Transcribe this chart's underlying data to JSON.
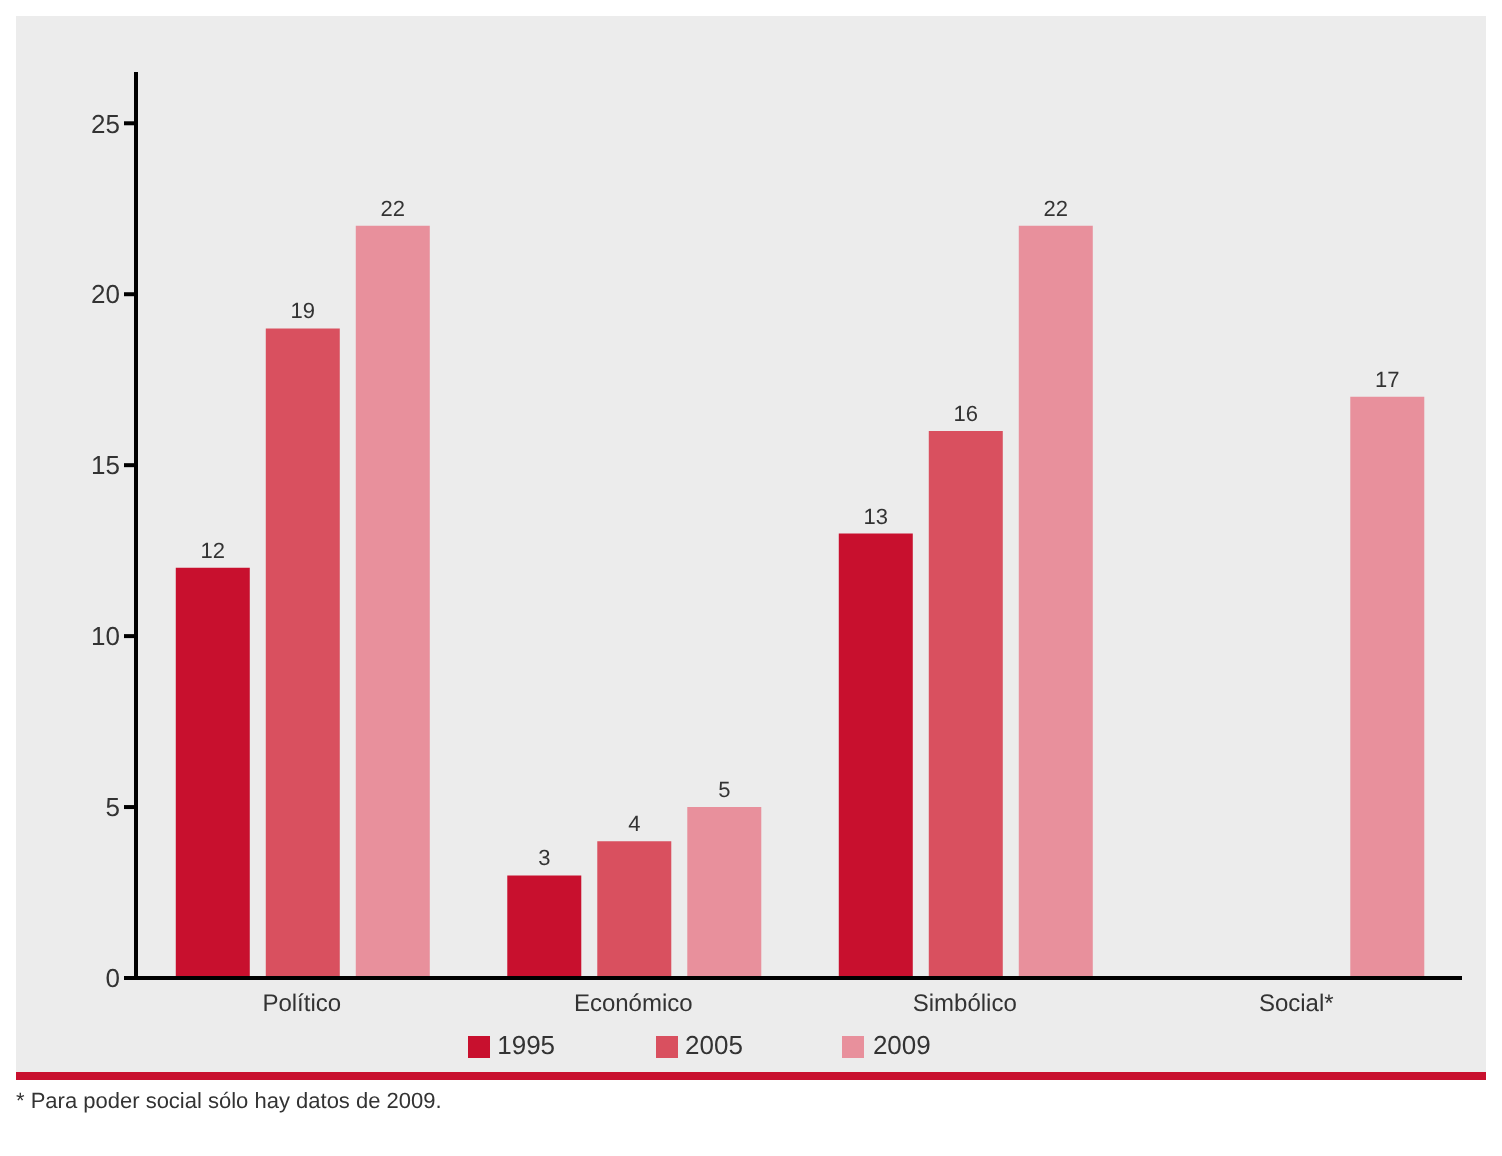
{
  "chart_data": {
    "type": "bar",
    "categories": [
      "Político",
      "Económico",
      "Simbólico",
      "Social*"
    ],
    "series": [
      {
        "name": "1995",
        "color": "#c8102e",
        "values": [
          12,
          3,
          13,
          null
        ]
      },
      {
        "name": "2005",
        "color": "#d9505f",
        "values": [
          19,
          4,
          16,
          null
        ]
      },
      {
        "name": "2009",
        "color": "#e8909c",
        "values": [
          22,
          5,
          22,
          17
        ]
      }
    ],
    "ylim": [
      0,
      26.5
    ],
    "yticks": [
      0,
      5,
      10,
      15,
      20,
      25
    ],
    "grid": false,
    "legend": "bottom",
    "data_labels": true,
    "annotations": [
      "* Para poder social sólo hay datos de 2009."
    ]
  }
}
